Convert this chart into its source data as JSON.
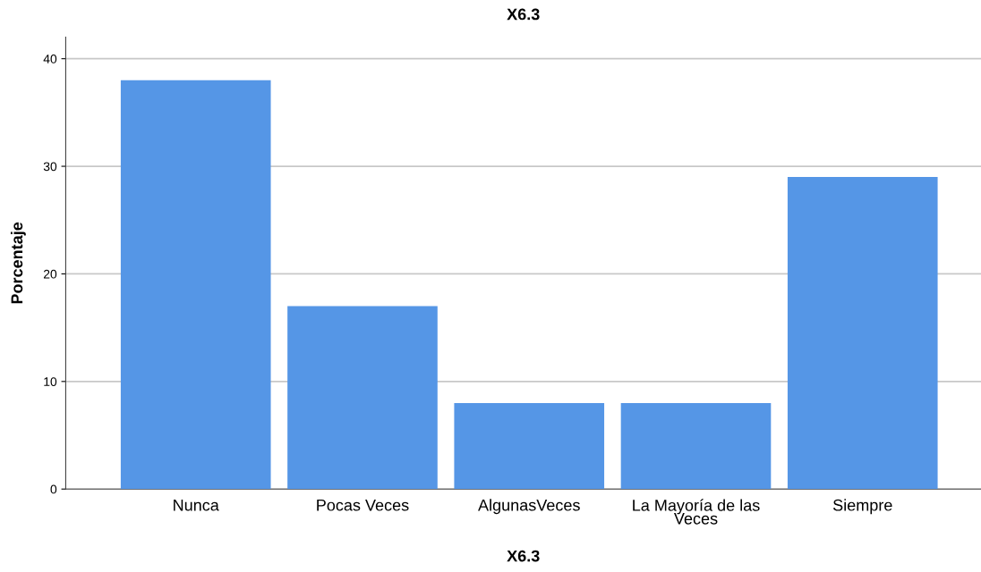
{
  "chart_data": {
    "type": "bar",
    "title": "X6.3",
    "xlabel": "X6.3",
    "ylabel": "Porcentaje",
    "categories": [
      "Nunca",
      "Pocas Veces",
      "AlgunasVeces",
      "La Mayoría de las\nVeces",
      "Siempre"
    ],
    "values": [
      38,
      17,
      8,
      8,
      29
    ],
    "color": "#5596e6",
    "ylim": [
      0,
      42
    ],
    "yticks": [
      0,
      10,
      20,
      30,
      40
    ],
    "grid": "y",
    "legend": false
  }
}
